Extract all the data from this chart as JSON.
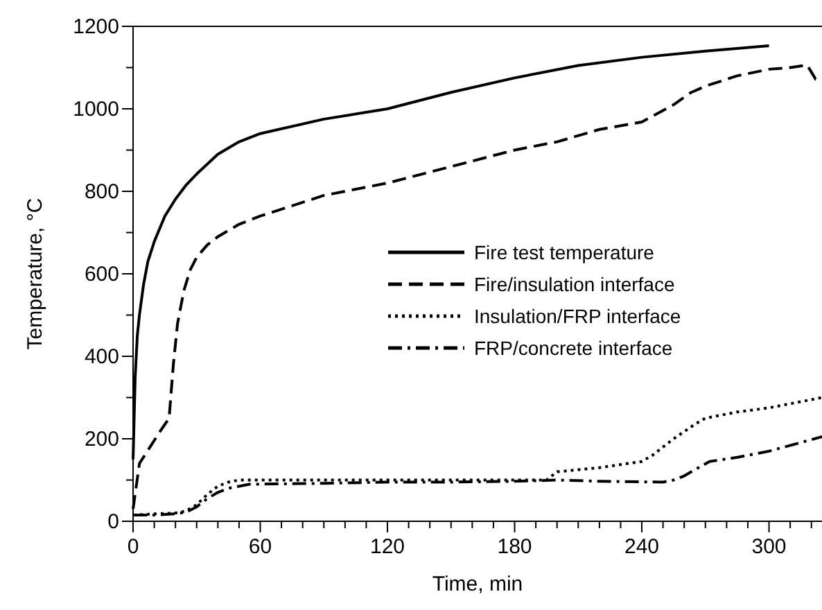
{
  "chart_data": {
    "type": "line",
    "xlabel": "Time, min",
    "ylabel": "Temperature, °C",
    "xlim": [
      0,
      325
    ],
    "ylim": [
      0,
      1200
    ],
    "xticks": [
      0,
      {
        "value": 10,
        "label": null
      },
      {
        "value": 20,
        "label": null
      },
      {
        "value": 30,
        "label": null
      },
      {
        "value": 40,
        "label": null
      },
      {
        "value": 50,
        "label": null
      },
      60,
      {
        "value": 70,
        "label": null
      },
      {
        "value": 80,
        "label": null
      },
      {
        "value": 90,
        "label": null
      },
      {
        "value": 100,
        "label": null
      },
      {
        "value": 110,
        "label": null
      },
      120,
      {
        "value": 130,
        "label": null
      },
      {
        "value": 140,
        "label": null
      },
      {
        "value": 150,
        "label": null
      },
      {
        "value": 160,
        "label": null
      },
      {
        "value": 170,
        "label": null
      },
      180,
      {
        "value": 190,
        "label": null
      },
      {
        "value": 200,
        "label": null
      },
      {
        "value": 210,
        "label": null
      },
      {
        "value": 220,
        "label": null
      },
      {
        "value": 230,
        "label": null
      },
      240,
      {
        "value": 250,
        "label": null
      },
      {
        "value": 260,
        "label": null
      },
      {
        "value": 270,
        "label": null
      },
      {
        "value": 280,
        "label": null
      },
      {
        "value": 290,
        "label": null
      },
      300,
      {
        "value": 310,
        "label": null
      },
      {
        "value": 320,
        "label": null
      }
    ],
    "yticks": [
      0,
      {
        "value": 100,
        "label": null
      },
      200,
      {
        "value": 300,
        "label": null
      },
      400,
      {
        "value": 500,
        "label": null
      },
      600,
      {
        "value": 700,
        "label": null
      },
      800,
      {
        "value": 900,
        "label": null
      },
      1000,
      {
        "value": 1100,
        "label": null
      },
      1200
    ],
    "legend": "right",
    "grid": false,
    "series": [
      {
        "name": "Fire test temperature",
        "color": "#000000",
        "line_style": "solid",
        "x": [
          0,
          1,
          2,
          3,
          5,
          7,
          10,
          15,
          20,
          25,
          30,
          40,
          50,
          60,
          90,
          120,
          150,
          180,
          210,
          240,
          270,
          300
        ],
        "values": [
          150,
          350,
          450,
          500,
          576,
          630,
          678,
          740,
          781,
          815,
          842,
          890,
          920,
          940,
          975,
          1000,
          1040,
          1075,
          1105,
          1125,
          1140,
          1153
        ]
      },
      {
        "name": "Fire/insulation interface",
        "color": "#000000",
        "line_style": "dashed",
        "x": [
          0,
          3,
          8,
          13,
          17,
          19,
          21,
          24,
          27,
          30,
          35,
          40,
          50,
          60,
          90,
          120,
          150,
          180,
          200,
          220,
          240,
          255,
          263,
          270,
          285,
          300,
          310,
          318,
          322,
          325
        ],
        "values": [
          30,
          140,
          180,
          220,
          250,
          380,
          480,
          560,
          610,
          640,
          670,
          690,
          720,
          740,
          790,
          820,
          860,
          900,
          920,
          950,
          968,
          1010,
          1039,
          1055,
          1080,
          1096,
          1100,
          1106,
          1072,
          1075
        ]
      },
      {
        "name": "Insulation/FRP interface",
        "color": "#000000",
        "line_style": "dotted",
        "x": [
          0,
          10,
          20,
          25,
          30,
          35,
          40,
          45,
          50,
          60,
          90,
          120,
          150,
          180,
          195,
          200,
          220,
          240,
          245,
          255,
          265,
          270,
          285,
          300,
          325
        ],
        "values": [
          15,
          18,
          20,
          25,
          40,
          65,
          85,
          95,
          100,
          100,
          100,
          100,
          100,
          100,
          100,
          120,
          130,
          145,
          160,
          200,
          235,
          250,
          265,
          275,
          300
        ]
      },
      {
        "name": "FRP/concrete interface",
        "color": "#000000",
        "line_style": "dashdot",
        "x": [
          0,
          10,
          20,
          25,
          30,
          35,
          40,
          45,
          50,
          55,
          60,
          90,
          120,
          150,
          180,
          200,
          220,
          250,
          255,
          260,
          265,
          272,
          285,
          300,
          325
        ],
        "values": [
          15,
          15,
          18,
          22,
          35,
          55,
          70,
          80,
          85,
          90,
          90,
          92,
          95,
          95,
          97,
          100,
          97,
          95,
          100,
          110,
          125,
          145,
          155,
          170,
          205
        ]
      }
    ]
  }
}
